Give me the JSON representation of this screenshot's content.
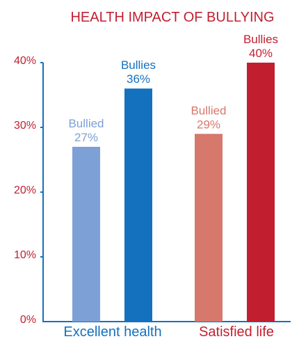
{
  "chart_data": {
    "type": "bar",
    "title": "HEALTH IMPACT OF BULLYING",
    "categories": [
      "Excellent health",
      "Satisfied life"
    ],
    "bars": [
      {
        "category": "Excellent health",
        "label": "Bullied",
        "value_text": "27%",
        "value": 27,
        "color": "#7da0d6"
      },
      {
        "category": "Excellent health",
        "label": "Bullies",
        "value_text": "36%",
        "value": 36,
        "color": "#1471be"
      },
      {
        "category": "Satisfied life",
        "label": "Bullied",
        "value_text": "29%",
        "value": 29,
        "color": "#d6786c"
      },
      {
        "category": "Satisfied life",
        "label": "Bullies",
        "value_text": "40%",
        "value": 40,
        "color": "#c11f30"
      }
    ],
    "y_ticks": [
      "0%",
      "10%",
      "20%",
      "30%",
      "40%"
    ],
    "ylim": [
      0,
      40
    ],
    "grid": false,
    "colors": {
      "title": "#c11f30",
      "y_tick": "#c11f30",
      "axis": "#1471be",
      "category_label": [
        "#1471be",
        "#c11f30"
      ]
    }
  }
}
